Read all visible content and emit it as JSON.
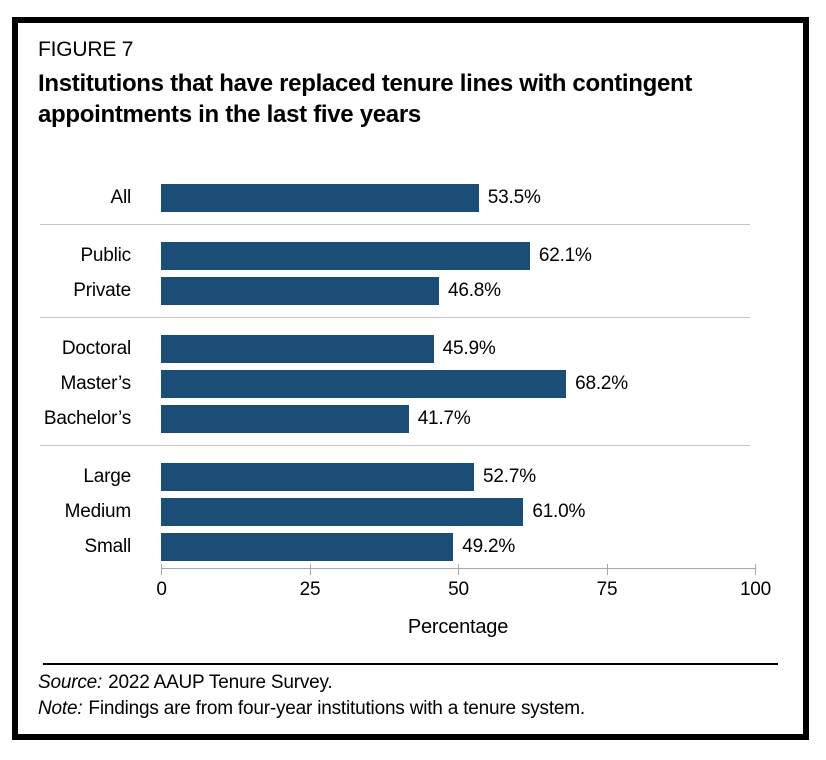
{
  "figure": {
    "label": "FIGURE 7",
    "title_lines": [
      "Institutions that have replaced tenure lines with contingent",
      "appointments in the last five years"
    ]
  },
  "chart_data": {
    "type": "bar",
    "orientation": "horizontal",
    "xlabel": "Percentage",
    "xlim": [
      0,
      100
    ],
    "x_ticks": [
      0,
      25,
      50,
      75,
      100
    ],
    "grid": false,
    "bar_color": "#1a4e76",
    "groups": [
      {
        "rows": [
          {
            "label": "All",
            "value": 53.5,
            "value_label": "53.5%"
          }
        ]
      },
      {
        "rows": [
          {
            "label": "Public",
            "value": 62.1,
            "value_label": "62.1%"
          },
          {
            "label": "Private",
            "value": 46.8,
            "value_label": "46.8%"
          }
        ]
      },
      {
        "rows": [
          {
            "label": "Doctoral",
            "value": 45.9,
            "value_label": "45.9%"
          },
          {
            "label": "Master’s",
            "value": 68.2,
            "value_label": "68.2%"
          },
          {
            "label": "Bachelor’s",
            "value": 41.7,
            "value_label": "41.7%"
          }
        ]
      },
      {
        "rows": [
          {
            "label": "Large",
            "value": 52.7,
            "value_label": "52.7%"
          },
          {
            "label": "Medium",
            "value": 61.0,
            "value_label": "61.0%"
          },
          {
            "label": "Small",
            "value": 49.2,
            "value_label": "49.2%"
          }
        ]
      }
    ]
  },
  "footer": {
    "source_prefix": "Source:",
    "source_text": "2022 AAUP Tenure Survey.",
    "note_prefix": "Note:",
    "note_text": "Findings are from four-year institutions with a tenure system."
  }
}
